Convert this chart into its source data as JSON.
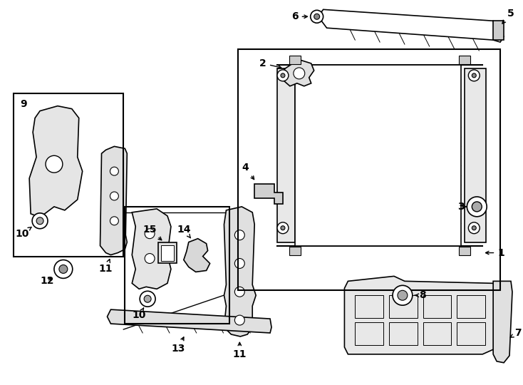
{
  "bg": "#ffffff",
  "lc": "#000000",
  "fw": 7.34,
  "fh": 5.4,
  "dpi": 100,
  "fs": 10
}
